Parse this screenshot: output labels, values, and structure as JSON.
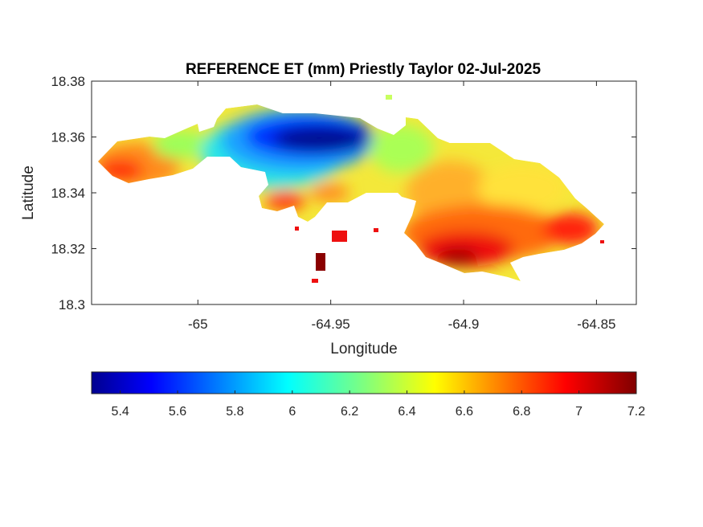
{
  "chart_data": {
    "type": "heatmap",
    "title": "REFERENCE ET (mm) Priestly Taylor 02-Jul-2025",
    "xlabel": "Longitude",
    "ylabel": "Latitude",
    "xlim": [
      -65.04,
      -64.835
    ],
    "ylim": [
      18.3,
      18.38
    ],
    "x_ticks": [
      -65,
      -64.95,
      -64.9,
      -64.85
    ],
    "x_tick_labels": [
      "-65",
      "-64.95",
      "-64.9",
      "-64.85"
    ],
    "y_ticks": [
      18.3,
      18.32,
      18.34,
      18.36,
      18.38
    ],
    "y_tick_labels": [
      "18.3",
      "18.32",
      "18.34",
      "18.36",
      "18.38"
    ],
    "colormap": "jet",
    "colorbar": {
      "orientation": "horizontal",
      "range": [
        5.3,
        7.2
      ],
      "ticks": [
        5.4,
        5.6,
        5.8,
        6,
        6.2,
        6.4,
        6.6,
        6.8,
        7,
        7.2
      ],
      "tick_labels": [
        "5.4",
        "5.6",
        "5.8",
        "6",
        "6.2",
        "6.4",
        "6.6",
        "6.8",
        "7",
        "7.2"
      ]
    },
    "field": {
      "min": 5.3,
      "max": 7.2,
      "low_center": {
        "lon": -64.957,
        "lat": 18.36,
        "value": 5.35
      },
      "high_regions": [
        {
          "lon": -64.905,
          "lat": 18.318,
          "value": 7.05
        },
        {
          "lon": -65.025,
          "lat": 18.348,
          "value": 6.85
        },
        {
          "lon": -64.873,
          "lat": 18.325,
          "value": 6.95
        }
      ]
    }
  }
}
